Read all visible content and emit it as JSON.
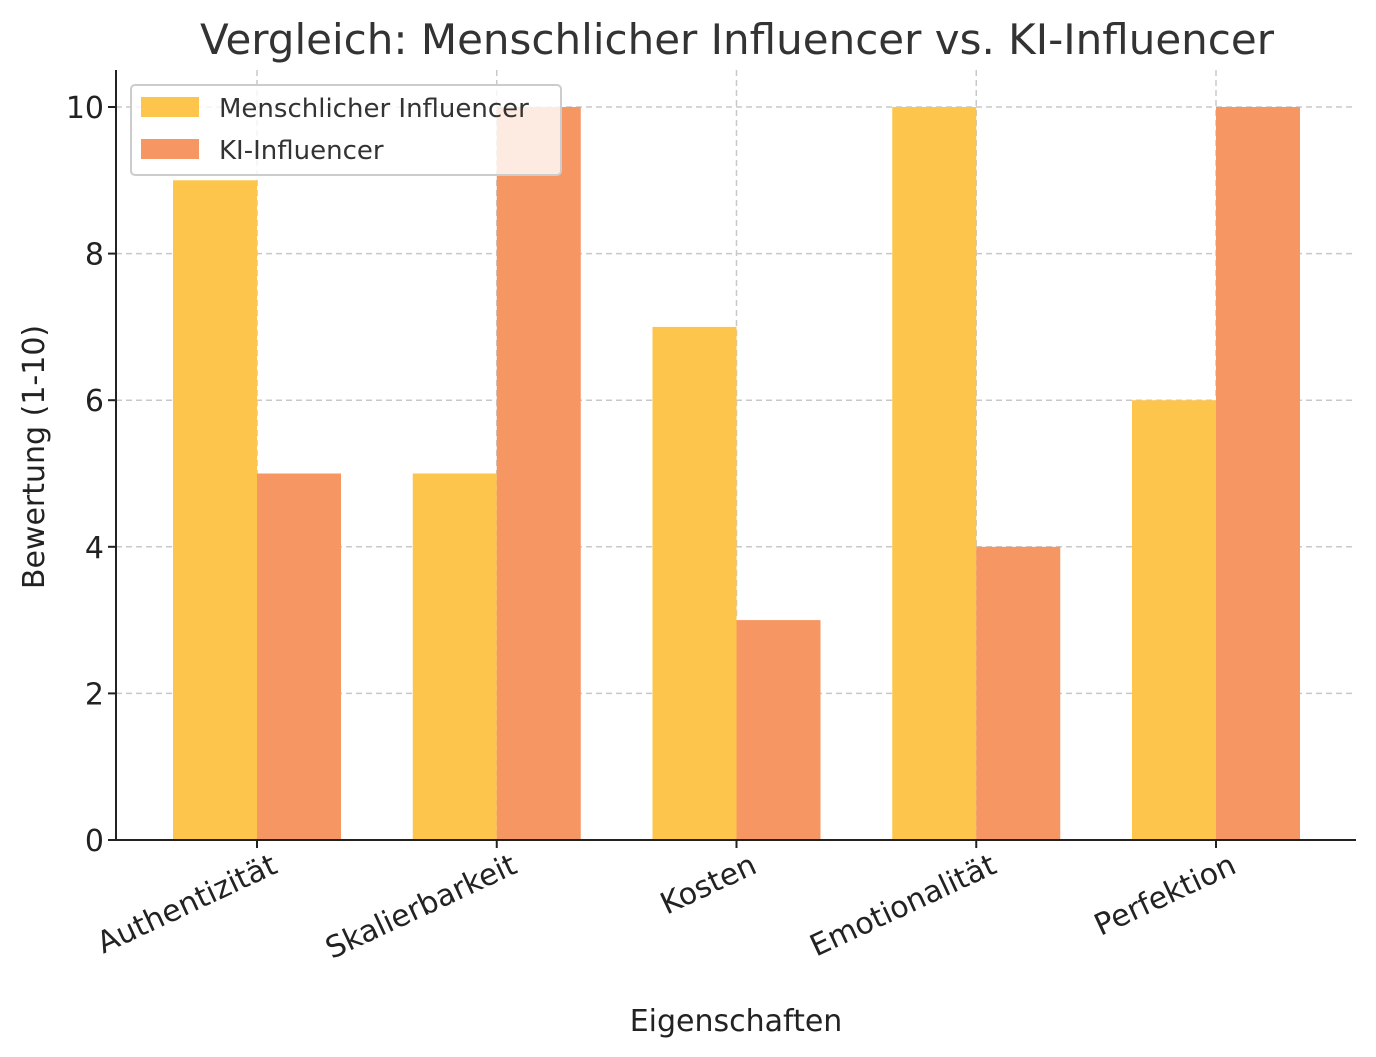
{
  "chart_data": {
    "type": "bar",
    "title": "Vergleich: Menschlicher Influencer vs. KI-Influencer",
    "xlabel": "Eigenschaften",
    "ylabel": "Bewertung (1-10)",
    "categories": [
      "Authentizität",
      "Skalierbarkeit",
      "Kosten",
      "Emotionalität",
      "Perfektion"
    ],
    "series": [
      {
        "name": "Menschlicher Influencer",
        "color": "#fdc54b",
        "values": [
          9,
          5,
          7,
          10,
          6
        ]
      },
      {
        "name": "KI-Influencer",
        "color": "#f59663",
        "values": [
          5,
          10,
          3,
          4,
          10
        ]
      }
    ],
    "ylim": [
      0,
      10.5
    ],
    "yticks": [
      "0",
      "2",
      "4",
      "6",
      "8",
      "10"
    ],
    "grid": true,
    "legend": "top-left"
  }
}
